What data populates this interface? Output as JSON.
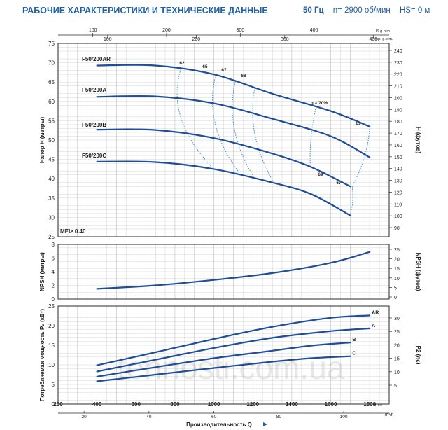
{
  "header": {
    "title": "РАБОЧИЕ ХАРАКТЕРИСТИКИ И ТЕХНИЧЕСКИЕ ДАННЫЕ",
    "freq": "50 Гц",
    "speed": "n= 2900 об/мин",
    "hs": "HS= 0 м"
  },
  "watermark": "tehnosti.com.ua",
  "colors": {
    "curve": "#1f4e96",
    "efficiency": "#3a8fd0",
    "grid": "#b9b9b9",
    "frame": "#2a2a2a",
    "header": "#1f5fa8"
  },
  "chart_data": [
    {
      "type": "line",
      "title": "",
      "xlabel": "Производительность Q",
      "x_units": "l/min",
      "xlim": [
        200,
        1900
      ],
      "x_ticks": [
        200,
        400,
        600,
        800,
        1000,
        1200,
        1400,
        1600,
        1800
      ],
      "secondary_x_top": [
        {
          "label": "US g.p.m.",
          "ticks": [
            100,
            200,
            300,
            400
          ]
        },
        {
          "label": "Imp. g.p.m.",
          "ticks": [
            100,
            200,
            300,
            400
          ]
        }
      ],
      "secondary_x_bottom": {
        "label": "m³/h",
        "ticks": [
          20,
          40,
          60,
          80,
          100
        ]
      },
      "ylabel": "Напор H (метры)",
      "ylim": [
        25,
        75
      ],
      "y_ticks": [
        25,
        30,
        35,
        40,
        45,
        50,
        55,
        60,
        65,
        70,
        75
      ],
      "secondary_y": {
        "label": "H (футов)",
        "ticks": [
          90,
          100,
          110,
          120,
          130,
          140,
          150,
          160,
          170,
          180,
          190,
          200,
          210,
          220,
          230,
          240
        ]
      },
      "grid": true,
      "annotation": "MEI≥ 0.40",
      "series": [
        {
          "name": "F50/200AR",
          "x": [
            400,
            700,
            1000,
            1300,
            1600,
            1800
          ],
          "y": [
            69.3,
            69.3,
            67,
            62,
            57.5,
            53.5
          ]
        },
        {
          "name": "F50/200A",
          "x": [
            400,
            700,
            1000,
            1300,
            1600,
            1800
          ],
          "y": [
            61.2,
            61.3,
            59.5,
            55.5,
            51,
            45.5
          ]
        },
        {
          "name": "F50/200B",
          "x": [
            400,
            700,
            1000,
            1300,
            1500,
            1700
          ],
          "y": [
            52.7,
            52.6,
            50.5,
            46.5,
            43,
            38
          ]
        },
        {
          "name": "F50/200C",
          "x": [
            400,
            700,
            1000,
            1300,
            1500,
            1700
          ],
          "y": [
            44.4,
            44.3,
            42.5,
            39,
            36,
            30.5
          ]
        }
      ],
      "efficiency_labels": [
        "62",
        "65",
        "67",
        "68",
        "η = 70%",
        "69",
        "69",
        "67"
      ]
    },
    {
      "type": "line",
      "ylabel": "NPSH (метры)",
      "ylim": [
        0,
        8
      ],
      "y_ticks": [
        0,
        2,
        4,
        6,
        8
      ],
      "secondary_y": {
        "label": "NPSH (футов)",
        "ticks": [
          0,
          5,
          10,
          15,
          20,
          25
        ]
      },
      "xlim": [
        200,
        1900
      ],
      "grid": true,
      "series": [
        {
          "x": [
            400,
            700,
            1000,
            1300,
            1600,
            1800
          ],
          "y": [
            1.5,
            2,
            2.8,
            3.8,
            5.3,
            6.9
          ]
        }
      ]
    },
    {
      "type": "line",
      "ylabel": "Потребляемая мощность P₂ (кВт)",
      "ylim": [
        0,
        25
      ],
      "y_ticks": [
        0,
        5,
        10,
        15,
        20,
        25
      ],
      "secondary_y": {
        "label": "P2 (лс)",
        "ticks": [
          5,
          10,
          15,
          20,
          25,
          30
        ]
      },
      "xlim": [
        200,
        1900
      ],
      "grid": true,
      "series": [
        {
          "name": "AR",
          "x": [
            400,
            700,
            1000,
            1300,
            1600,
            1800
          ],
          "y": [
            9.9,
            13.2,
            16.6,
            19.7,
            22,
            22.6
          ]
        },
        {
          "name": "A",
          "x": [
            400,
            700,
            1000,
            1300,
            1600,
            1800
          ],
          "y": [
            8.3,
            11.3,
            14.3,
            16.9,
            18.6,
            19.3
          ]
        },
        {
          "name": "B",
          "x": [
            400,
            700,
            1000,
            1300,
            1500,
            1700
          ],
          "y": [
            7,
            9.4,
            11.7,
            13.6,
            14.9,
            15.7
          ]
        },
        {
          "name": "C",
          "x": [
            400,
            700,
            1000,
            1300,
            1500,
            1700
          ],
          "y": [
            5.8,
            7.5,
            9.2,
            10.8,
            11.7,
            12.2
          ]
        }
      ]
    }
  ]
}
